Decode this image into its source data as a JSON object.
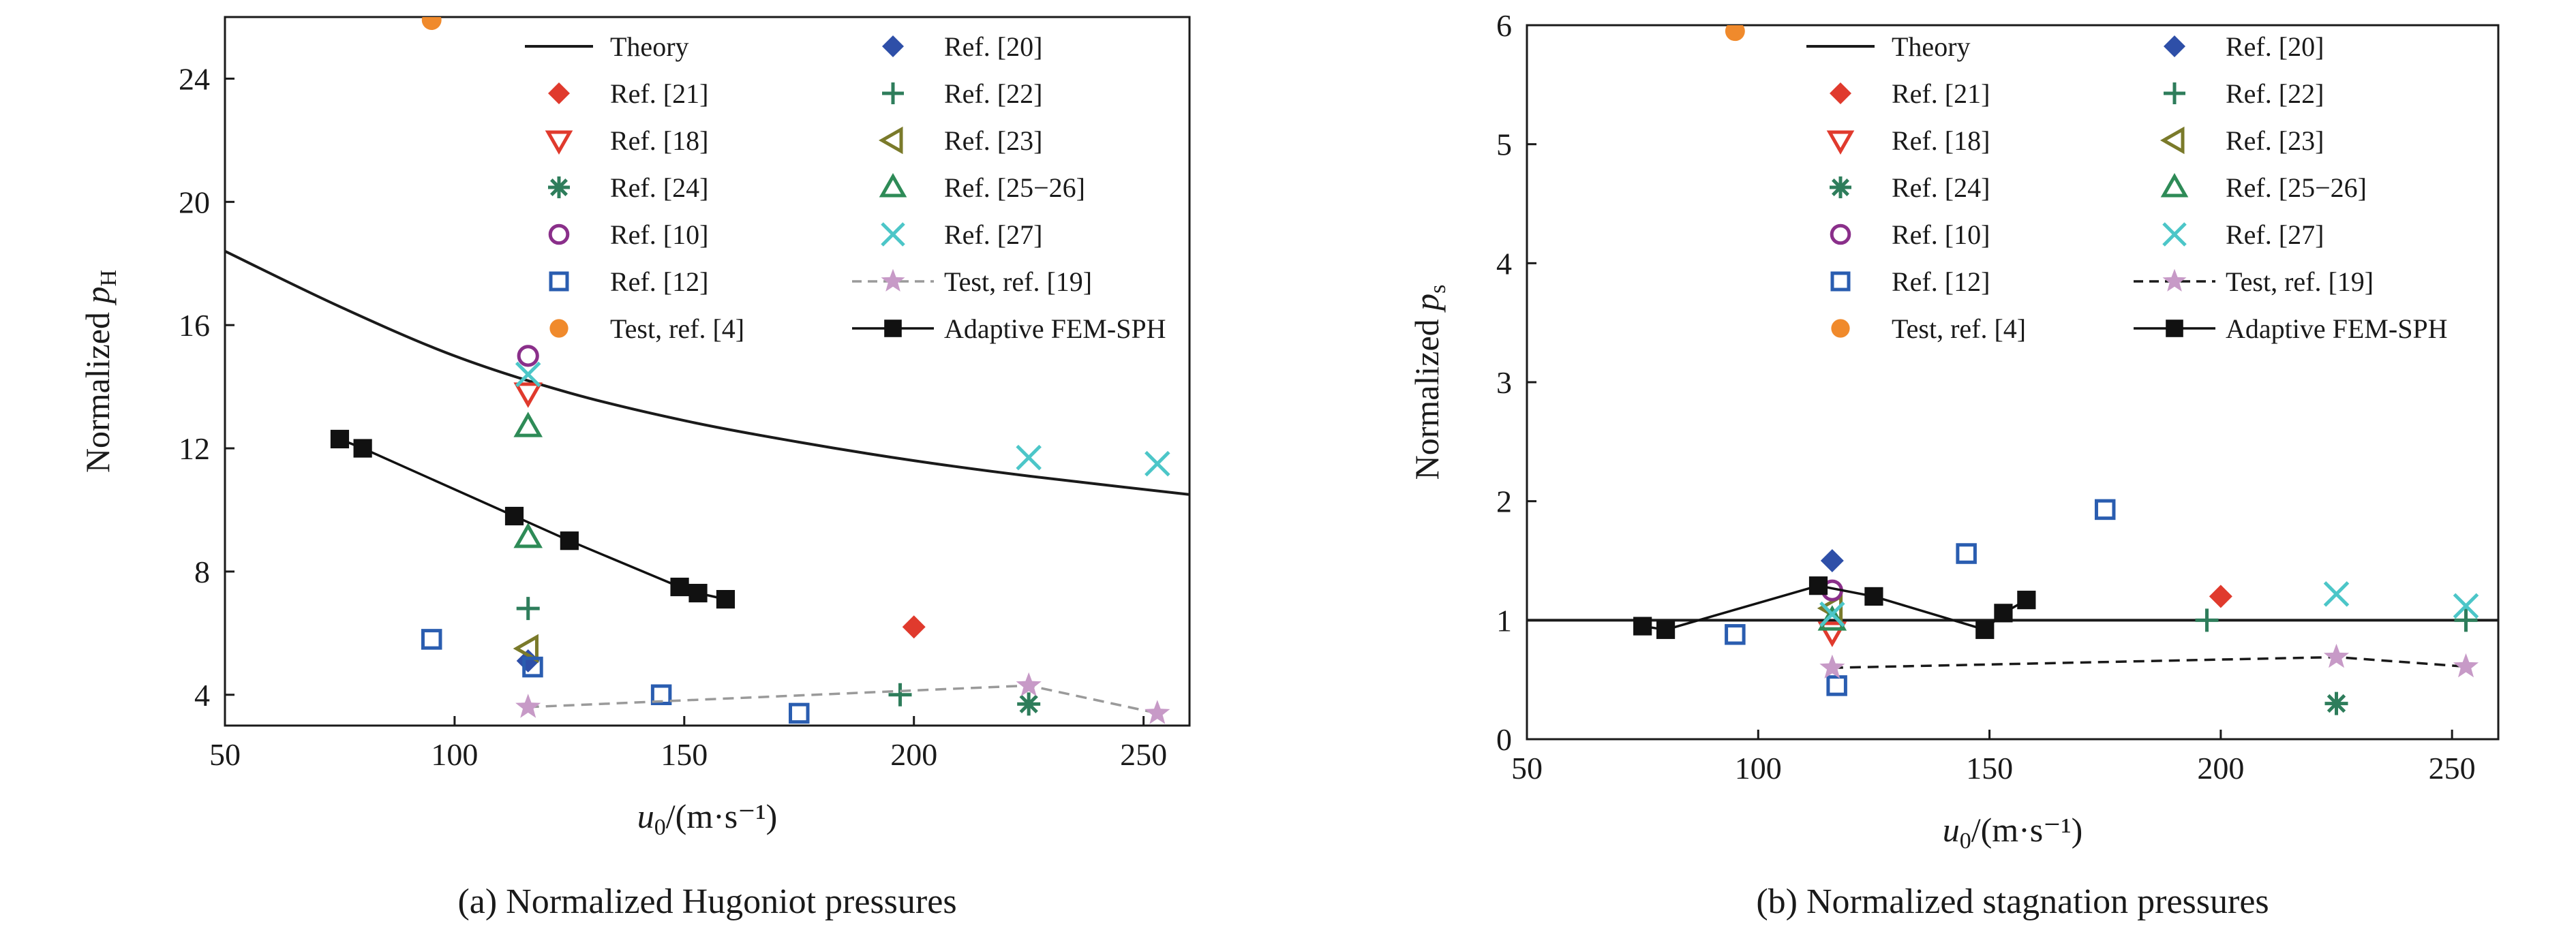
{
  "charts": [
    {
      "caption": "(a) Normalized Hugoniot pressures",
      "ylabel_main": "Normalized ",
      "ylabel_var": "p",
      "ylabel_sub": "H",
      "xlabel_var": "u",
      "xlabel_sub": "0",
      "xlabel_unit": "/(m·s⁻¹)",
      "xlim": [
        50,
        260
      ],
      "ylim": [
        3,
        26
      ],
      "xticks": [
        50,
        100,
        150,
        200,
        250
      ],
      "yticks": [
        4,
        8,
        12,
        16,
        20,
        24
      ],
      "legend": [
        "Theory",
        "Ref. [20]",
        "Ref. [21]",
        "Ref. [22]",
        "Ref. [18]",
        "Ref. [23]",
        "Ref. [24]",
        "Ref. [25−26]",
        "Ref. [10]",
        "Ref. [27]",
        "Ref. [12]",
        "Test, ref. [19]",
        "Test, ref. [4]",
        "Adaptive FEM-SPH"
      ]
    },
    {
      "caption": "(b) Normalized stagnation pressures",
      "ylabel_main": "Normalized ",
      "ylabel_var": "p",
      "ylabel_sub": "s",
      "xlabel_var": "u",
      "xlabel_sub": "0",
      "xlabel_unit": "/(m·s⁻¹)",
      "xlim": [
        50,
        260
      ],
      "ylim": [
        0,
        6
      ],
      "xticks": [
        50,
        100,
        150,
        200,
        250
      ],
      "yticks": [
        0,
        1,
        2,
        3,
        4,
        5,
        6
      ],
      "legend": [
        "Theory",
        "Ref. [20]",
        "Ref. [21]",
        "Ref. [22]",
        "Ref. [18]",
        "Ref. [23]",
        "Ref. [24]",
        "Ref. [25−26]",
        "Ref. [10]",
        "Ref. [27]",
        "Ref. [12]",
        "Test, ref. [19]",
        "Test, ref. [4]",
        "Adaptive FEM-SPH"
      ]
    }
  ],
  "chart_data": [
    {
      "type": "scatter",
      "caption": "(a) Normalized Hugoniot pressures",
      "xlabel": "u0/(m·s⁻¹)",
      "ylabel": "Normalized pH",
      "xlim": [
        50,
        260
      ],
      "ylim": [
        3,
        26
      ],
      "grid": false,
      "legend_position": "top-right",
      "series": [
        {
          "name": "Theory",
          "marker": "line",
          "color": "#1a1a1a",
          "x": [
            50,
            75,
            100,
            125,
            150,
            175,
            200,
            225,
            260
          ],
          "y": [
            18.4,
            16.6,
            15.0,
            13.8,
            12.9,
            12.2,
            11.6,
            11.1,
            10.5
          ]
        },
        {
          "name": "Ref. [20]",
          "marker": "diamond",
          "color": "#2e4fa8",
          "x": [
            116
          ],
          "y": [
            5.1
          ]
        },
        {
          "name": "Ref. [21]",
          "marker": "diamond",
          "color": "#e03a2d",
          "x": [
            200
          ],
          "y": [
            6.2
          ]
        },
        {
          "name": "Ref. [22]",
          "marker": "plus",
          "color": "#2e7d5b",
          "x": [
            116,
            197
          ],
          "y": [
            6.8,
            4.0
          ]
        },
        {
          "name": "Ref. [18]",
          "marker": "triangle-down",
          "color": "#e03a2d",
          "x": [
            116
          ],
          "y": [
            13.8
          ]
        },
        {
          "name": "Ref. [23]",
          "marker": "triangle-left",
          "color": "#7a7a2a",
          "x": [
            116
          ],
          "y": [
            5.5
          ]
        },
        {
          "name": "Ref. [24]",
          "marker": "asterisk",
          "color": "#2e7d5b",
          "x": [
            225
          ],
          "y": [
            3.7
          ]
        },
        {
          "name": "Ref. [25−26]",
          "marker": "triangle-up",
          "color": "#2e8b57",
          "x": [
            116,
            116
          ],
          "y": [
            12.7,
            9.1
          ]
        },
        {
          "name": "Ref. [10]",
          "marker": "circle-open",
          "color": "#8a2f8a",
          "x": [
            116
          ],
          "y": [
            15.0
          ]
        },
        {
          "name": "Ref. [27]",
          "marker": "x",
          "color": "#4cc6c8",
          "x": [
            116,
            225,
            253
          ],
          "y": [
            14.4,
            11.7,
            11.5
          ]
        },
        {
          "name": "Ref. [12]",
          "marker": "square-open",
          "color": "#2a5db0",
          "x": [
            95,
            117,
            145,
            175
          ],
          "y": [
            5.8,
            4.9,
            4.0,
            3.4
          ]
        },
        {
          "name": "Test, ref. [19]",
          "marker": "star",
          "color": "#c79ac7",
          "dash": "dashed-gray",
          "x": [
            116,
            225,
            253
          ],
          "y": [
            3.6,
            4.3,
            3.4
          ]
        },
        {
          "name": "Test, ref. [4]",
          "marker": "circle-filled",
          "color": "#f08a2c",
          "x": [
            95
          ],
          "y": [
            25.9
          ]
        },
        {
          "name": "Adaptive FEM-SPH",
          "marker": "square-filled",
          "color": "#111111",
          "line": "solid",
          "x": [
            75,
            80,
            113,
            125,
            149,
            153,
            159
          ],
          "y": [
            12.3,
            12.0,
            9.8,
            9.0,
            7.5,
            7.3,
            7.1
          ]
        }
      ]
    },
    {
      "type": "scatter",
      "caption": "(b) Normalized stagnation pressures",
      "xlabel": "u0/(m·s⁻¹)",
      "ylabel": "Normalized ps",
      "xlim": [
        50,
        260
      ],
      "ylim": [
        0,
        6
      ],
      "grid": false,
      "legend_position": "top-right",
      "series": [
        {
          "name": "Theory",
          "marker": "line",
          "color": "#1a1a1a",
          "x": [
            50,
            260
          ],
          "y": [
            1.0,
            1.0
          ]
        },
        {
          "name": "Ref. [20]",
          "marker": "diamond",
          "color": "#2e4fa8",
          "x": [
            116
          ],
          "y": [
            1.5
          ]
        },
        {
          "name": "Ref. [21]",
          "marker": "diamond",
          "color": "#e03a2d",
          "x": [
            200
          ],
          "y": [
            1.2
          ]
        },
        {
          "name": "Ref. [22]",
          "marker": "plus",
          "color": "#2e7d5b",
          "x": [
            197,
            253
          ],
          "y": [
            1.0,
            1.0
          ]
        },
        {
          "name": "Ref. [18]",
          "marker": "triangle-down",
          "color": "#e03a2d",
          "x": [
            116
          ],
          "y": [
            0.9
          ]
        },
        {
          "name": "Ref. [23]",
          "marker": "triangle-left",
          "color": "#7a7a2a",
          "x": [
            116
          ],
          "y": [
            1.1
          ]
        },
        {
          "name": "Ref. [24]",
          "marker": "asterisk",
          "color": "#2e7d5b",
          "x": [
            225
          ],
          "y": [
            0.3
          ]
        },
        {
          "name": "Ref. [25−26]",
          "marker": "triangle-up",
          "color": "#2e8b57",
          "x": [
            116
          ],
          "y": [
            1.0
          ]
        },
        {
          "name": "Ref. [10]",
          "marker": "circle-open",
          "color": "#8a2f8a",
          "x": [
            116
          ],
          "y": [
            1.25
          ]
        },
        {
          "name": "Ref. [27]",
          "marker": "x",
          "color": "#4cc6c8",
          "x": [
            116,
            225,
            253
          ],
          "y": [
            1.05,
            1.22,
            1.12
          ]
        },
        {
          "name": "Ref. [12]",
          "marker": "square-open",
          "color": "#2a5db0",
          "x": [
            95,
            117,
            145,
            175
          ],
          "y": [
            0.88,
            0.45,
            1.56,
            1.93
          ]
        },
        {
          "name": "Test, ref. [19]",
          "marker": "star",
          "color": "#c79ac7",
          "dash": "dashed-black",
          "x": [
            116,
            225,
            253
          ],
          "y": [
            0.6,
            0.69,
            0.61
          ]
        },
        {
          "name": "Test, ref. [4]",
          "marker": "circle-filled",
          "color": "#f08a2c",
          "x": [
            95
          ],
          "y": [
            5.95
          ]
        },
        {
          "name": "Adaptive FEM-SPH",
          "marker": "square-filled",
          "color": "#111111",
          "line": "solid",
          "x": [
            75,
            80,
            113,
            125,
            149,
            153,
            158
          ],
          "y": [
            0.95,
            0.92,
            1.29,
            1.2,
            0.92,
            1.06,
            1.17
          ]
        }
      ]
    }
  ]
}
